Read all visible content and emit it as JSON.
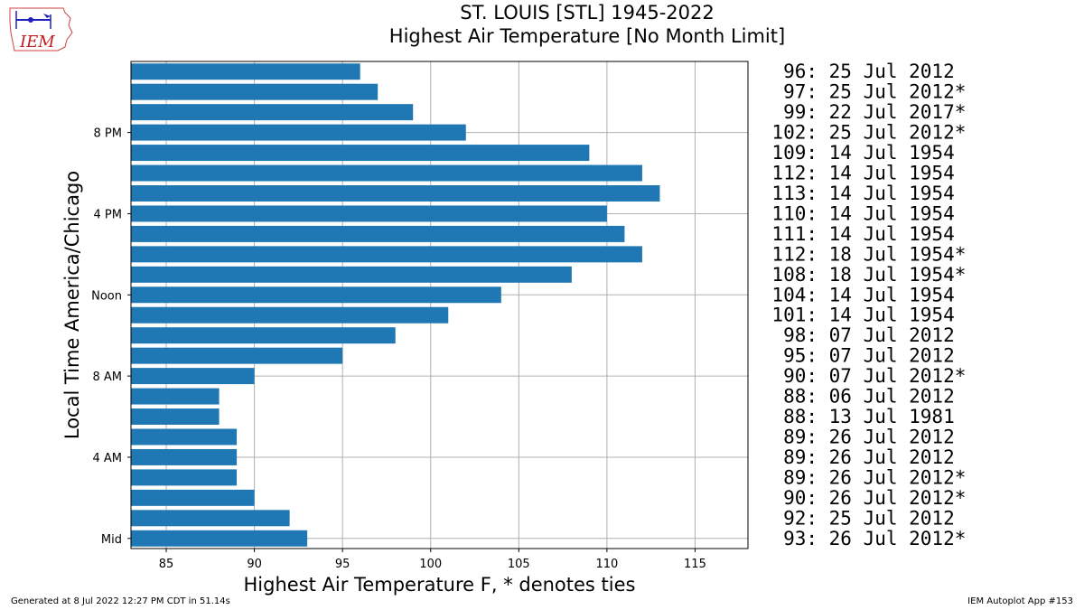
{
  "logo": {
    "text": "IEM"
  },
  "header": {
    "title": "ST. LOUIS [STL] 1945-2022",
    "subtitle": "Highest Air Temperature [No Month Limit]"
  },
  "footer": {
    "left": "Generated at 8 Jul 2022 12:27 PM CDT in 51.14s",
    "right": "IEM Autoplot App #153"
  },
  "colors": {
    "bar": "#1f77b4",
    "grid": "#b0b0b0"
  },
  "chart_data": {
    "type": "bar",
    "orientation": "horizontal",
    "title": "ST. LOUIS [STL] 1945-2022",
    "subtitle": "Highest Air Temperature [No Month Limit]",
    "xlabel": "Highest Air Temperature F, * denotes ties",
    "ylabel": "Local Time America/Chicago",
    "xlim": [
      83,
      118
    ],
    "ylim": [
      -0.5,
      23.5
    ],
    "grid": true,
    "xticks": [
      85,
      90,
      95,
      100,
      105,
      110,
      115
    ],
    "yticks": [
      {
        "hour": 0,
        "label": "Mid"
      },
      {
        "hour": 4,
        "label": "4 AM"
      },
      {
        "hour": 8,
        "label": "8 AM"
      },
      {
        "hour": 12,
        "label": "Noon"
      },
      {
        "hour": 16,
        "label": "4 PM"
      },
      {
        "hour": 20,
        "label": "8 PM"
      }
    ],
    "hours": [
      0,
      1,
      2,
      3,
      4,
      5,
      6,
      7,
      8,
      9,
      10,
      11,
      12,
      13,
      14,
      15,
      16,
      17,
      18,
      19,
      20,
      21,
      22,
      23
    ],
    "values": [
      93,
      92,
      90,
      89,
      89,
      89,
      88,
      88,
      90,
      95,
      98,
      101,
      104,
      108,
      112,
      111,
      110,
      113,
      112,
      109,
      102,
      99,
      97,
      96
    ],
    "annotations": [
      "93: 26 Jul 2012*",
      "92: 25 Jul 2012",
      "90: 26 Jul 2012*",
      "89: 26 Jul 2012*",
      "89: 26 Jul 2012",
      "89: 26 Jul 2012",
      "88: 13 Jul 1981",
      "88: 06 Jul 2012",
      "90: 07 Jul 2012*",
      "95: 07 Jul 2012",
      "98: 07 Jul 2012",
      "101: 14 Jul 1954",
      "104: 14 Jul 1954",
      "108: 18 Jul 1954*",
      "112: 18 Jul 1954*",
      "111: 14 Jul 1954",
      "110: 14 Jul 1954",
      "113: 14 Jul 1954",
      "112: 14 Jul 1954",
      "109: 14 Jul 1954",
      "102: 25 Jul 2012*",
      "99: 22 Jul 2017*",
      "97: 25 Jul 2012*",
      "96: 25 Jul 2012"
    ]
  }
}
